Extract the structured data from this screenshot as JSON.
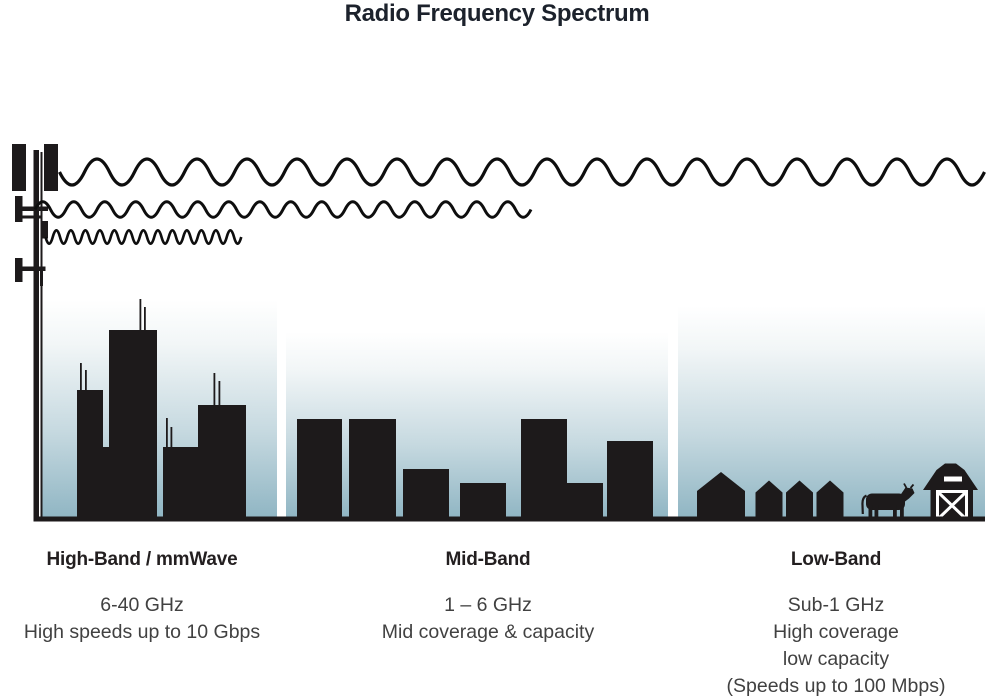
{
  "title": "Radio Frequency Spectrum",
  "bands": [
    {
      "id": "high-band",
      "heading": "High-Band / mmWave",
      "lines": [
        "6-40 GHz",
        "High speeds up to 10 Gbps"
      ]
    },
    {
      "id": "mid-band",
      "heading": "Mid-Band",
      "lines": [
        "1 – 6 GHz",
        "Mid coverage & capacity"
      ]
    },
    {
      "id": "low-band",
      "heading": "Low-Band",
      "lines": [
        "Sub-1 GHz",
        "High coverage",
        "low capacity",
        "(Speeds up to 100 Mbps)"
      ]
    }
  ],
  "illustration": {
    "icons": [
      "cell-tower-icon",
      "long-wave-icon (low frequency, travels farthest)",
      "medium-wave-icon (mid frequency, medium reach)",
      "short-wave-icon (high frequency, shortest reach)",
      "city-skyline (high-band scene)",
      "town-skyline (mid-band scene)",
      "rural-houses, cow-icon, barn-icon (low-band scene)"
    ],
    "colors": {
      "silhouette_ink": "#1d1a1b",
      "sky_gradient_top": "#ffffff",
      "sky_gradient_bottom": "#8fb5c3",
      "title_text": "#1c222c",
      "body_text": "#414141"
    }
  }
}
